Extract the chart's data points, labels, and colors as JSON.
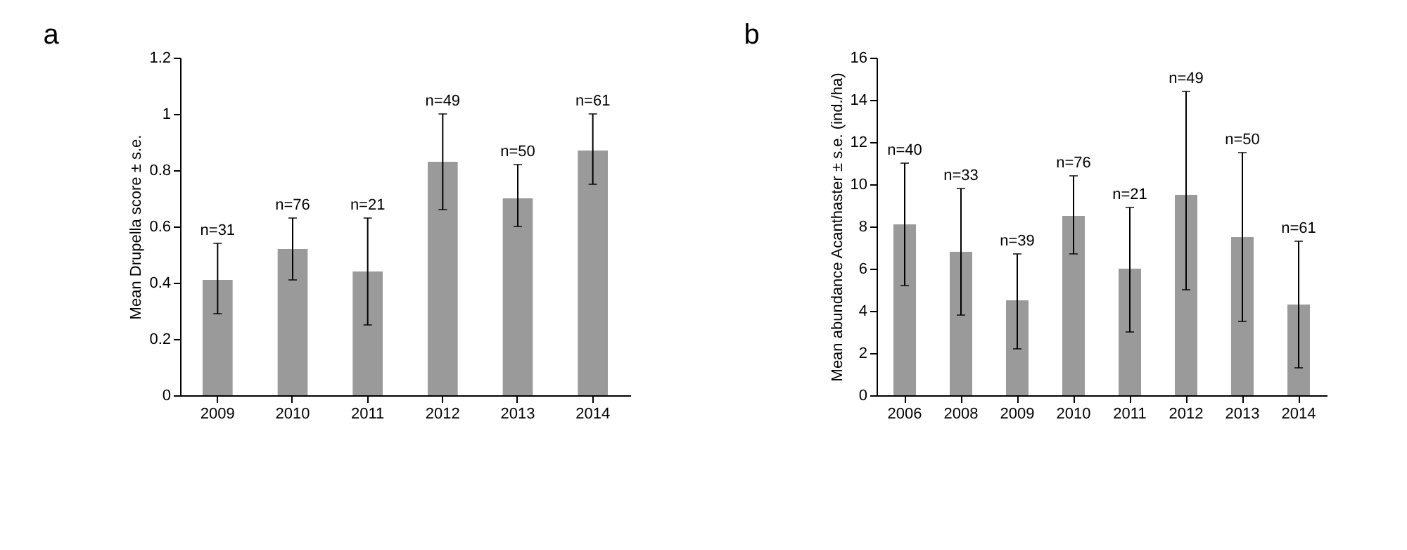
{
  "chart_data": [
    {
      "type": "bar",
      "title": "a",
      "ylabel": "Mean Drupella score ± s.e.",
      "categories": [
        "2009",
        "2010",
        "2011",
        "2012",
        "2013",
        "2014"
      ],
      "series": [
        {
          "color": "#9a9a9a",
          "values": [
            0.41,
            0.52,
            0.44,
            0.83,
            0.7,
            0.87
          ],
          "errors": [
            [
              0.29,
              0.54
            ],
            [
              0.41,
              0.63
            ],
            [
              0.25,
              0.63
            ],
            [
              0.66,
              1.0
            ],
            [
              0.6,
              0.82
            ],
            [
              0.75,
              1.0
            ]
          ]
        }
      ],
      "ylim": [
        0,
        1.2
      ],
      "yticks": [
        0,
        0.2,
        0.4,
        0.6,
        0.8,
        1,
        1.2
      ],
      "grid": false,
      "annotations": [
        {
          "text": "n=31",
          "x": "2009",
          "y": 0.54
        },
        {
          "text": "n=76",
          "x": "2010",
          "y": 0.63
        },
        {
          "text": "n=21",
          "x": "2011",
          "y": 0.63
        },
        {
          "text": "n=49",
          "x": "2012",
          "y": 1.0
        },
        {
          "text": "n=50",
          "x": "2013",
          "y": 0.82
        },
        {
          "text": "n=61",
          "x": "2014",
          "y": 1.0
        }
      ]
    },
    {
      "type": "bar",
      "title": "b",
      "ylabel": "Mean abundance Acanthaster ± s.e. (ind./ha)",
      "categories": [
        "2006",
        "2008",
        "2009",
        "2010",
        "2011",
        "2012",
        "2013",
        "2014"
      ],
      "series": [
        {
          "color": "#9a9a9a",
          "values": [
            8.1,
            6.8,
            4.5,
            8.5,
            6.0,
            9.5,
            7.5,
            4.3
          ],
          "errors": [
            [
              5.2,
              11.0
            ],
            [
              3.8,
              9.8
            ],
            [
              2.2,
              6.7
            ],
            [
              6.7,
              10.4
            ],
            [
              3.0,
              8.9
            ],
            [
              5.0,
              14.4
            ],
            [
              3.5,
              11.5
            ],
            [
              1.3,
              7.3
            ]
          ]
        }
      ],
      "ylim": [
        0,
        16
      ],
      "yticks": [
        0,
        2,
        4,
        6,
        8,
        10,
        12,
        14,
        16
      ],
      "grid": false,
      "annotations": [
        {
          "text": "n=40",
          "x": "2006",
          "y": 11.0
        },
        {
          "text": "n=33",
          "x": "2008",
          "y": 9.8
        },
        {
          "text": "n=39",
          "x": "2009",
          "y": 6.7
        },
        {
          "text": "n=76",
          "x": "2010",
          "y": 10.4
        },
        {
          "text": "n=21",
          "x": "2011",
          "y": 8.9
        },
        {
          "text": "n=49",
          "x": "2012",
          "y": 14.4
        },
        {
          "text": "n=50",
          "x": "2013",
          "y": 11.5
        },
        {
          "text": "n=61",
          "x": "2014",
          "y": 7.3
        }
      ]
    }
  ]
}
